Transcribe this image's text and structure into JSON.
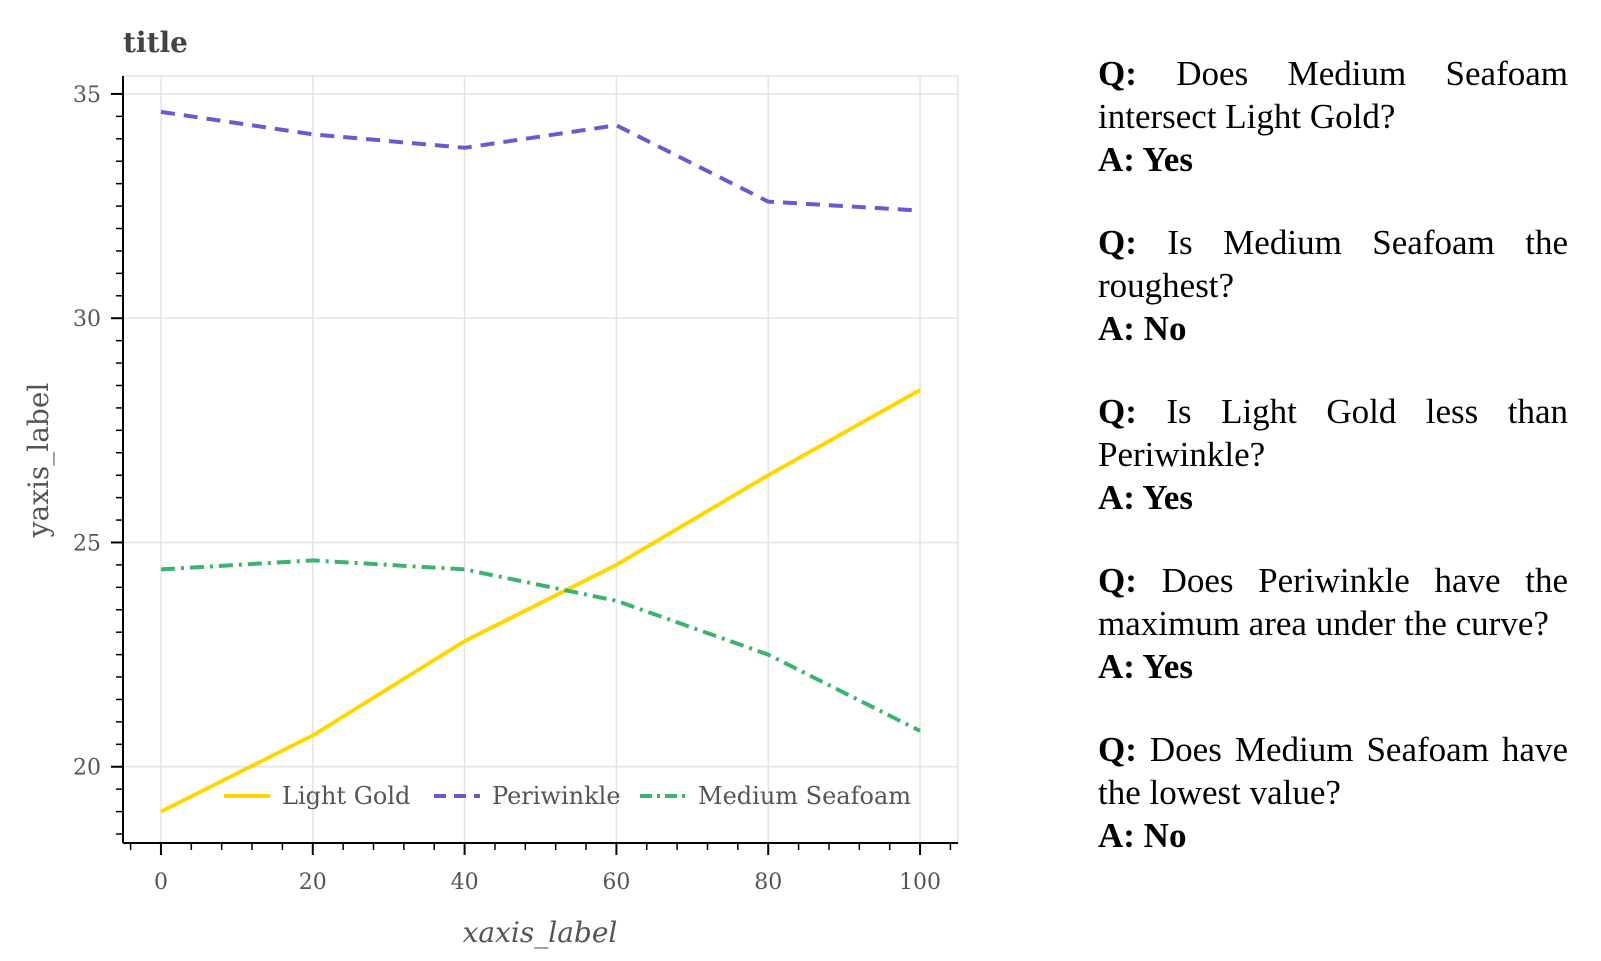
{
  "chart_data": {
    "type": "line",
    "title": "title",
    "xlabel": "xaxis_label",
    "ylabel": "yaxis_label",
    "x": [
      0,
      20,
      40,
      60,
      80,
      100
    ],
    "xlim": [
      -5,
      105
    ],
    "ylim": [
      18.3,
      35.4
    ],
    "xticks": [
      0,
      20,
      40,
      60,
      80,
      100
    ],
    "yticks": [
      20,
      25,
      30,
      35
    ],
    "grid": true,
    "legend_position": "bottom-right",
    "series": [
      {
        "name": "Light Gold",
        "values": [
          19.0,
          20.7,
          22.8,
          24.5,
          26.5,
          28.4
        ],
        "color": "#FFD700",
        "dash": "solid"
      },
      {
        "name": "Periwinkle",
        "values": [
          34.6,
          34.1,
          33.8,
          34.3,
          32.6,
          32.4
        ],
        "color": "#6A5ACD",
        "dash": "dashed"
      },
      {
        "name": "Medium Seafoam",
        "values": [
          24.4,
          24.6,
          24.4,
          23.7,
          22.5,
          20.8
        ],
        "color": "#3CB371",
        "dash": "dashdot"
      }
    ]
  },
  "qa": [
    {
      "q_prefix": "Q:",
      "question": "Does Medium Seafoam intersect Light Gold?",
      "answer": "A: Yes"
    },
    {
      "q_prefix": "Q:",
      "question": "Is Medium Seafoam the roughest?",
      "answer": "A: No"
    },
    {
      "q_prefix": "Q:",
      "question": "Is Light Gold less than Periwinkle?",
      "answer": "A: Yes"
    },
    {
      "q_prefix": "Q:",
      "question": "Does Periwinkle have the maximum area under the curve?",
      "answer": "A: Yes"
    },
    {
      "q_prefix": "Q:",
      "question": "Does Medium Seafoam have the lowest value?",
      "answer": "A: No"
    }
  ]
}
